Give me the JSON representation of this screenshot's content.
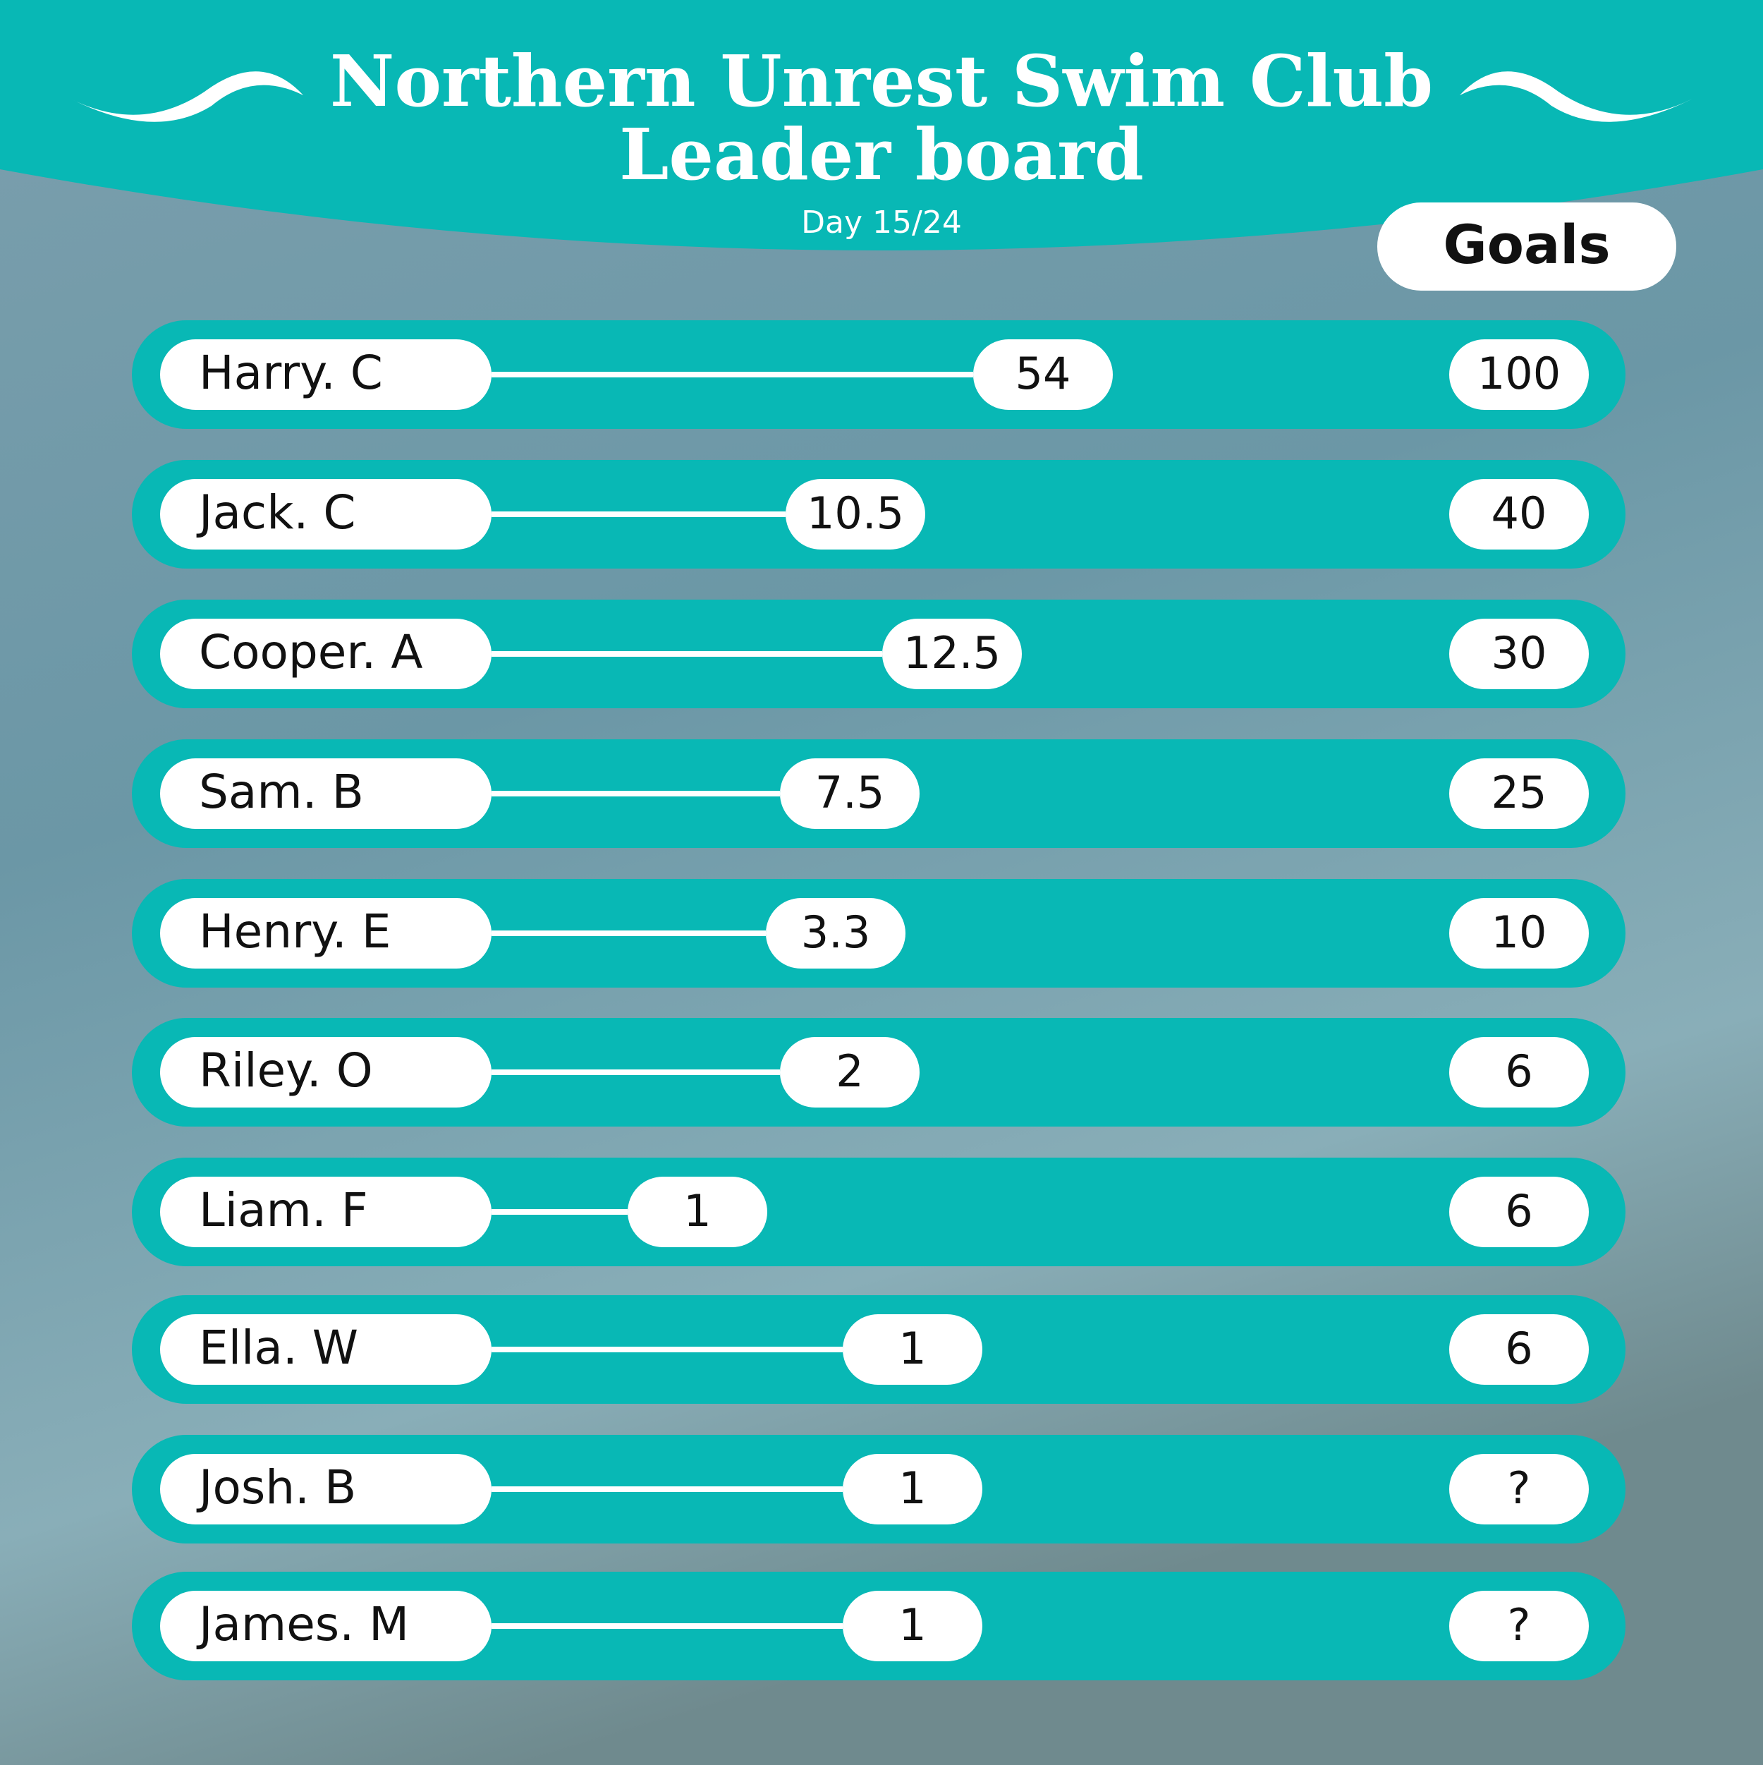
{
  "header": {
    "title_lines": [
      "Northern Unrest Swim Club",
      "Leader board"
    ],
    "subtitle": "Day 15/24",
    "goals_label": "Goals"
  },
  "rows": [
    {
      "name": "Harry. C",
      "value": 54,
      "goal": 100
    },
    {
      "name": "Jack. C",
      "value": 10.5,
      "goal": 40
    },
    {
      "name": "Cooper. A",
      "value": 12.5,
      "goal": 30
    },
    {
      "name": "Sam. B",
      "value": 7.5,
      "goal": 25
    },
    {
      "name": "Henry. E",
      "value": 3.3,
      "goal": 10
    },
    {
      "name": "Riley. O",
      "value": 2,
      "goal": 6
    },
    {
      "name": "Liam. F",
      "value": 1,
      "goal": 6
    },
    {
      "name": "Ella. W",
      "value": 1,
      "goal": 6
    },
    {
      "name": "Josh. B",
      "value": 1,
      "goal": "?"
    },
    {
      "name": "James. M",
      "value": 1,
      "goal": "?"
    }
  ]
}
